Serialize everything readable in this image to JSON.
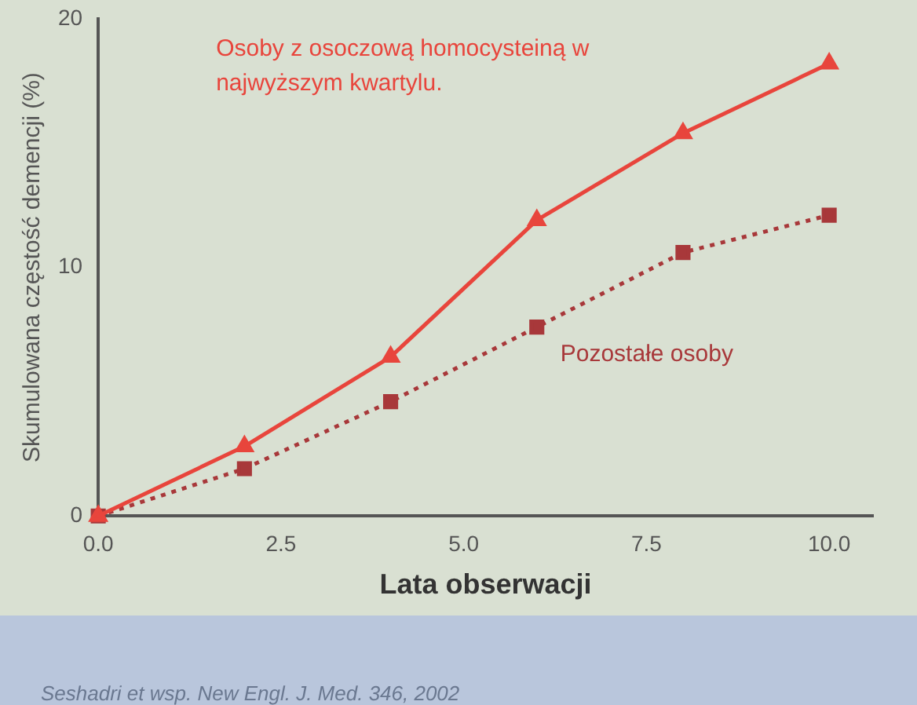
{
  "chart_data": {
    "type": "line",
    "xlabel": "Lata obserwacji",
    "ylabel": "Skumulowana częstość demencji (%)",
    "x": [
      0,
      2,
      4,
      6,
      8,
      10
    ],
    "series": [
      {
        "name": "Osoby z osoczową homocysteiną w najwyższym kwartylu.",
        "color": "#e8453c",
        "values": [
          0,
          2.8,
          6.4,
          11.9,
          15.4,
          18.2
        ],
        "marker": "triangle",
        "line_style": "solid"
      },
      {
        "name": "Pozostałe osoby",
        "color": "#a8383a",
        "values": [
          0,
          1.9,
          4.6,
          7.6,
          10.6,
          12.1
        ],
        "marker": "square",
        "line_style": "dotted"
      }
    ],
    "xlim": [
      0,
      10.6
    ],
    "ylim": [
      0,
      20
    ],
    "xticks": [
      {
        "value": 0,
        "label": "0.0"
      },
      {
        "value": 2.5,
        "label": "2.5"
      },
      {
        "value": 5,
        "label": "5.0"
      },
      {
        "value": 7.5,
        "label": "7.5"
      },
      {
        "value": 10,
        "label": "10.0"
      }
    ],
    "yticks": [
      0,
      10,
      20
    ],
    "grid": false,
    "legend": false,
    "annotations": [
      "Seshadri et wsp. New Engl. J. Med. 346, 2002"
    ]
  }
}
